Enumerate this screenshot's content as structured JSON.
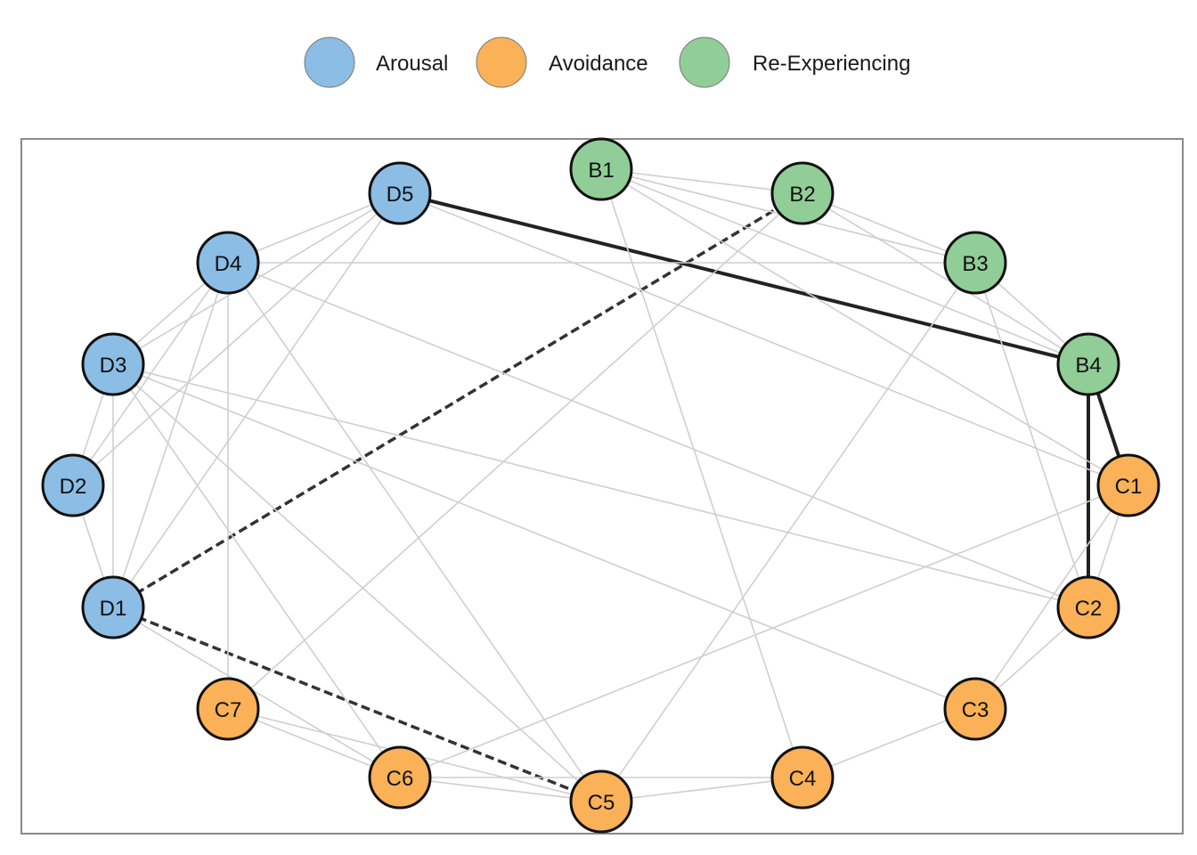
{
  "legend": {
    "items": [
      {
        "label": "Arousal",
        "color": "#8BBDE5"
      },
      {
        "label": "Avoidance",
        "color": "#FAB157"
      },
      {
        "label": "Re-Experiencing",
        "color": "#91CE97"
      }
    ]
  },
  "groups": {
    "arousal": "#8BBDE5",
    "avoidance": "#FAB157",
    "reexperiencing": "#91CE97"
  },
  "nodes": [
    {
      "id": "B1",
      "group": "reexperiencing"
    },
    {
      "id": "B2",
      "group": "reexperiencing"
    },
    {
      "id": "B3",
      "group": "reexperiencing"
    },
    {
      "id": "B4",
      "group": "reexperiencing"
    },
    {
      "id": "C1",
      "group": "avoidance"
    },
    {
      "id": "C2",
      "group": "avoidance"
    },
    {
      "id": "C3",
      "group": "avoidance"
    },
    {
      "id": "C4",
      "group": "avoidance"
    },
    {
      "id": "C5",
      "group": "avoidance"
    },
    {
      "id": "C6",
      "group": "avoidance"
    },
    {
      "id": "C7",
      "group": "avoidance"
    },
    {
      "id": "D1",
      "group": "arousal"
    },
    {
      "id": "D2",
      "group": "arousal"
    },
    {
      "id": "D3",
      "group": "arousal"
    },
    {
      "id": "D4",
      "group": "arousal"
    },
    {
      "id": "D5",
      "group": "arousal"
    }
  ],
  "edges": [
    {
      "from": "D5",
      "to": "B4",
      "style": "strong"
    },
    {
      "from": "B4",
      "to": "C1",
      "style": "strong"
    },
    {
      "from": "B4",
      "to": "C2",
      "style": "strong"
    },
    {
      "from": "D1",
      "to": "B2",
      "style": "negative"
    },
    {
      "from": "D1",
      "to": "C5",
      "style": "negative"
    },
    {
      "from": "B1",
      "to": "B2",
      "style": "weak"
    },
    {
      "from": "B1",
      "to": "B3",
      "style": "weak"
    },
    {
      "from": "B1",
      "to": "B4",
      "style": "weak"
    },
    {
      "from": "B1",
      "to": "C1",
      "style": "weak"
    },
    {
      "from": "B1",
      "to": "C4",
      "style": "weak"
    },
    {
      "from": "B2",
      "to": "B3",
      "style": "weak"
    },
    {
      "from": "B2",
      "to": "B4",
      "style": "weak"
    },
    {
      "from": "B2",
      "to": "C7",
      "style": "weak"
    },
    {
      "from": "B3",
      "to": "B4",
      "style": "weak"
    },
    {
      "from": "B3",
      "to": "C2",
      "style": "weak"
    },
    {
      "from": "B3",
      "to": "C5",
      "style": "weak"
    },
    {
      "from": "B3",
      "to": "D4",
      "style": "weak"
    },
    {
      "from": "C1",
      "to": "C2",
      "style": "weak"
    },
    {
      "from": "C1",
      "to": "C3",
      "style": "weak"
    },
    {
      "from": "C1",
      "to": "C6",
      "style": "weak"
    },
    {
      "from": "C2",
      "to": "C3",
      "style": "weak"
    },
    {
      "from": "C3",
      "to": "D3",
      "style": "weak"
    },
    {
      "from": "C4",
      "to": "C3",
      "style": "weak"
    },
    {
      "from": "C4",
      "to": "C5",
      "style": "weak"
    },
    {
      "from": "C4",
      "to": "C6",
      "style": "weak"
    },
    {
      "from": "C5",
      "to": "C6",
      "style": "weak"
    },
    {
      "from": "C5",
      "to": "C7",
      "style": "weak"
    },
    {
      "from": "C5",
      "to": "D3",
      "style": "weak"
    },
    {
      "from": "C5",
      "to": "D4",
      "style": "weak"
    },
    {
      "from": "C6",
      "to": "C7",
      "style": "weak"
    },
    {
      "from": "C6",
      "to": "D3",
      "style": "weak"
    },
    {
      "from": "C7",
      "to": "D4",
      "style": "weak"
    },
    {
      "from": "D1",
      "to": "D2",
      "style": "weak"
    },
    {
      "from": "D1",
      "to": "D3",
      "style": "weak"
    },
    {
      "from": "D1",
      "to": "D4",
      "style": "weak"
    },
    {
      "from": "D1",
      "to": "D5",
      "style": "weak"
    },
    {
      "from": "D1",
      "to": "C6",
      "style": "weak"
    },
    {
      "from": "D2",
      "to": "D3",
      "style": "weak"
    },
    {
      "from": "D2",
      "to": "D4",
      "style": "weak"
    },
    {
      "from": "D2",
      "to": "D5",
      "style": "weak"
    },
    {
      "from": "D3",
      "to": "D4",
      "style": "weak"
    },
    {
      "from": "D3",
      "to": "D5",
      "style": "weak"
    },
    {
      "from": "D3",
      "to": "C2",
      "style": "weak"
    },
    {
      "from": "D4",
      "to": "D5",
      "style": "weak"
    },
    {
      "from": "D4",
      "to": "C2",
      "style": "weak"
    },
    {
      "from": "D5",
      "to": "C1",
      "style": "weak"
    }
  ]
}
